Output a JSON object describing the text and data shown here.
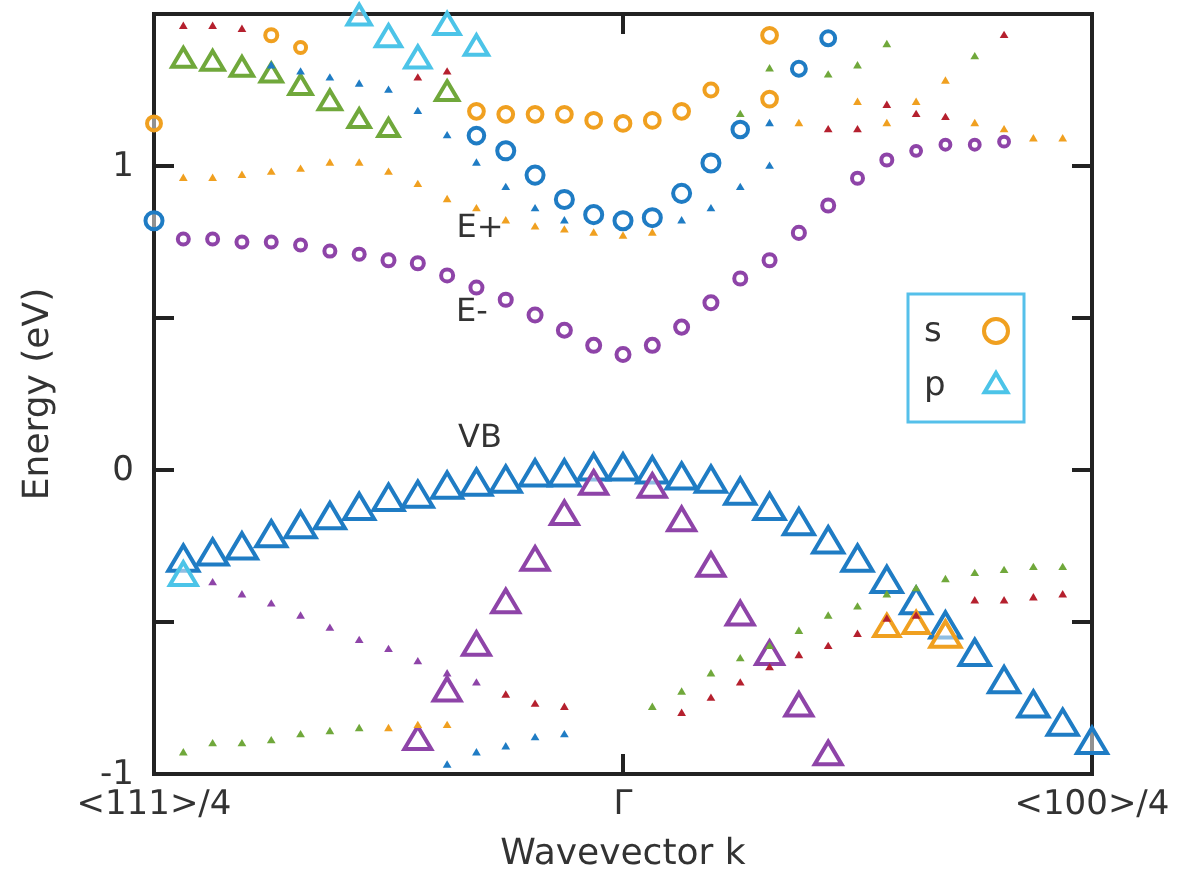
{
  "chart_data": {
    "type": "scatter",
    "xlabel": "Wavevector k",
    "ylabel": "Energy (eV)",
    "ylim": [
      -1,
      1.5
    ],
    "categories": [
      "<111>/4",
      null,
      null,
      null,
      null,
      null,
      null,
      null,
      null,
      null,
      null,
      null,
      null,
      null,
      null,
      null,
      "Γ",
      null,
      null,
      null,
      null,
      null,
      null,
      null,
      null,
      null,
      null,
      null,
      null,
      null,
      null,
      null,
      "<100>/4"
    ],
    "yticks": [
      -1,
      {
        "value": -0.5,
        "label": null
      },
      0,
      {
        "value": 0.5,
        "label": null
      },
      1
    ],
    "legend": "right",
    "annotations": [
      "E+",
      "E-",
      "VB"
    ],
    "series": [
      {
        "type": "bubble",
        "color": "#1f7cc4",
        "marker": "triangle",
        "values": [
          null,
          -0.3,
          -0.28,
          -0.26,
          -0.22,
          -0.19,
          -0.16,
          -0.13,
          -0.1,
          -0.09,
          -0.06,
          -0.05,
          -0.04,
          -0.02,
          -0.02,
          0,
          0,
          -0.01,
          -0.03,
          -0.04,
          -0.08,
          -0.13,
          -0.18,
          -0.24,
          -0.3,
          -0.37,
          -0.44,
          -0.52,
          -0.61,
          -0.7,
          -0.78,
          -0.84,
          -0.9
        ],
        "sizes": [
          null,
          1,
          1,
          1,
          1,
          1,
          1,
          1,
          1,
          1,
          1,
          1,
          1,
          1,
          1,
          1,
          1,
          1,
          1,
          1,
          1,
          1,
          1,
          1,
          1,
          1,
          1,
          1,
          1,
          1,
          1,
          1,
          1
        ]
      },
      {
        "type": "bubble",
        "color": "#8e44a8",
        "marker": "triangle",
        "values": [
          null,
          null,
          null,
          null,
          null,
          null,
          null,
          null,
          null,
          -0.89,
          -0.73,
          -0.58,
          -0.44,
          -0.3,
          -0.15,
          -0.05,
          null,
          -0.06,
          -0.17,
          -0.32,
          -0.48,
          -0.61,
          -0.78,
          -0.94,
          null,
          null,
          null,
          null,
          null,
          null,
          null,
          null,
          null
        ],
        "sizes": [
          null,
          null,
          null,
          null,
          null,
          null,
          null,
          null,
          null,
          0.8,
          0.8,
          0.8,
          0.8,
          0.8,
          0.8,
          0.8,
          null,
          0.8,
          0.8,
          0.8,
          0.8,
          0.8,
          0.8,
          0.8,
          null,
          null,
          null,
          null,
          null,
          null,
          null,
          null,
          null
        ]
      },
      {
        "type": "bubble",
        "color": "#f0a020",
        "marker": "triangle",
        "values": [
          null,
          null,
          null,
          null,
          null,
          null,
          null,
          null,
          null,
          null,
          null,
          null,
          null,
          null,
          null,
          null,
          null,
          null,
          null,
          null,
          null,
          null,
          null,
          null,
          null,
          -0.52,
          -0.51,
          -0.55,
          null,
          null,
          null,
          null,
          null
        ],
        "sizes": [
          null,
          null,
          null,
          null,
          null,
          null,
          null,
          null,
          null,
          null,
          null,
          null,
          null,
          null,
          null,
          null,
          null,
          null,
          null,
          null,
          null,
          null,
          null,
          null,
          null,
          0.7,
          0.7,
          1,
          null,
          null,
          null,
          null,
          null
        ]
      },
      {
        "type": "bubble",
        "color": "#8e44a8",
        "marker": "circle",
        "values": [
          null,
          0.76,
          0.76,
          0.75,
          0.75,
          0.74,
          0.72,
          0.71,
          0.69,
          0.68,
          0.64,
          0.6,
          0.56,
          0.51,
          0.46,
          0.41,
          0.38,
          0.41,
          0.47,
          0.55,
          0.63,
          0.69,
          0.78,
          0.87,
          0.96,
          1.02,
          1.05,
          1.07,
          1.07,
          1.08,
          null,
          null,
          null
        ],
        "sizes": [
          null,
          0.25,
          0.25,
          0.25,
          0.25,
          0.25,
          0.25,
          0.25,
          0.3,
          0.3,
          0.3,
          0.3,
          0.3,
          0.35,
          0.35,
          0.35,
          0.35,
          0.35,
          0.35,
          0.35,
          0.3,
          0.3,
          0.3,
          0.3,
          0.25,
          0.25,
          0.2,
          0.2,
          0.2,
          0.2,
          null,
          null,
          null
        ]
      },
      {
        "type": "bubble",
        "color": "#1f7cc4",
        "marker": "circle",
        "values": [
          0.82,
          null,
          null,
          null,
          null,
          null,
          null,
          null,
          null,
          null,
          null,
          1.1,
          1.05,
          0.97,
          0.89,
          0.84,
          0.82,
          0.83,
          0.91,
          1.01,
          1.12,
          null,
          1.32,
          1.42,
          null,
          null,
          null,
          null,
          null,
          null,
          null,
          null,
          null
        ],
        "sizes": [
          0.6,
          null,
          null,
          null,
          null,
          null,
          null,
          null,
          null,
          null,
          null,
          0.5,
          0.6,
          0.6,
          0.6,
          0.6,
          0.6,
          0.6,
          0.6,
          0.6,
          0.5,
          null,
          0.4,
          0.4,
          null,
          null,
          null,
          null,
          null,
          null,
          null,
          null,
          null
        ]
      },
      {
        "name": "s",
        "type": "bubble",
        "color": "#f0a020",
        "marker": "circle",
        "values": [
          1.14,
          null,
          null,
          null,
          1.43,
          1.39,
          null,
          null,
          null,
          null,
          null,
          1.18,
          1.17,
          1.17,
          1.17,
          1.15,
          1.14,
          1.15,
          1.18,
          1.25,
          null,
          1.22,
          null,
          null,
          null,
          null,
          null,
          null,
          null,
          null,
          null,
          null,
          null
        ],
        "sizes": [
          0.4,
          null,
          null,
          null,
          0.3,
          0.25,
          null,
          null,
          null,
          null,
          null,
          0.45,
          0.45,
          0.45,
          0.45,
          0.45,
          0.45,
          0.45,
          0.45,
          0.35,
          null,
          0.45,
          null,
          null,
          null,
          null,
          null,
          null,
          null,
          null,
          null,
          null,
          null
        ]
      },
      {
        "type": "bubble",
        "color": "#f0a020",
        "marker": "circle",
        "values": [
          null,
          null,
          null,
          null,
          null,
          null,
          null,
          null,
          null,
          null,
          null,
          null,
          null,
          null,
          null,
          null,
          null,
          null,
          null,
          null,
          null,
          1.43,
          null,
          null,
          null,
          null,
          null,
          null,
          null,
          null,
          null,
          null,
          null
        ],
        "sizes": [
          null,
          null,
          null,
          null,
          null,
          null,
          null,
          null,
          null,
          null,
          null,
          null,
          null,
          null,
          null,
          null,
          null,
          null,
          null,
          null,
          null,
          0.45,
          null,
          null,
          null,
          null,
          null,
          null,
          null,
          null,
          null,
          null,
          null
        ]
      },
      {
        "name": "p",
        "type": "bubble",
        "color": "#4cc4e8",
        "marker": "triangle",
        "values": [
          null,
          -0.35,
          null,
          null,
          null,
          null,
          null,
          1.49,
          1.42,
          1.35,
          1.46,
          1.39,
          null,
          null,
          null,
          null,
          null,
          null,
          null,
          null,
          null,
          null,
          null,
          null,
          null,
          null,
          null,
          null,
          null,
          null,
          null,
          null,
          null
        ],
        "sizes": [
          null,
          0.8,
          null,
          null,
          null,
          null,
          null,
          0.6,
          0.7,
          0.7,
          0.7,
          0.6,
          null,
          null,
          null,
          null,
          null,
          null,
          null,
          null,
          null,
          null,
          null,
          null,
          null,
          null,
          null,
          null,
          null,
          null,
          null,
          null,
          null
        ]
      },
      {
        "type": "bubble",
        "color": "#70a83b",
        "marker": "triangle",
        "values": [
          null,
          1.35,
          1.34,
          1.32,
          1.3,
          1.26,
          1.21,
          1.15,
          1.12,
          null,
          1.24,
          null,
          null,
          null,
          null,
          null,
          null,
          null,
          null,
          null,
          null,
          null,
          null,
          null,
          null,
          null,
          null,
          null,
          null,
          null,
          null,
          null,
          null
        ],
        "sizes": [
          null,
          0.55,
          0.55,
          0.55,
          0.5,
          0.55,
          0.55,
          0.5,
          0.45,
          null,
          0.55,
          null,
          null,
          null,
          null,
          null,
          null,
          null,
          null,
          null,
          null,
          null,
          null,
          null,
          null,
          null,
          null,
          null,
          null,
          null,
          null,
          null,
          null
        ]
      },
      {
        "color": "#f0a020",
        "marker": "triangle",
        "values": [
          null,
          0.96,
          0.96,
          0.97,
          0.98,
          0.99,
          1.01,
          1.01,
          0.98,
          0.94,
          0.89,
          0.86,
          0.82,
          0.8,
          0.79,
          0.78,
          0.77,
          0.78,
          null,
          null,
          null,
          null,
          1.14,
          null,
          1.21,
          1.14,
          1.21,
          1.28,
          1.14,
          1.12,
          1.09,
          1.09,
          null
        ]
      },
      {
        "color": "#f0a020",
        "marker": "triangle",
        "values": [
          null,
          null,
          null,
          null,
          null,
          null,
          null,
          null,
          -0.85,
          -0.84,
          -0.84,
          null,
          null,
          null,
          null,
          null,
          null,
          null,
          null,
          null,
          null,
          null,
          null,
          null,
          null,
          null,
          null,
          null,
          null,
          null,
          null,
          null,
          null
        ]
      },
      {
        "color": "#70a83b",
        "marker": "triangle",
        "values": [
          null,
          null,
          null,
          null,
          null,
          null,
          null,
          null,
          null,
          null,
          null,
          null,
          null,
          null,
          null,
          null,
          null,
          null,
          null,
          null,
          1.17,
          1.32,
          null,
          1.3,
          1.33,
          1.4,
          null,
          null,
          1.36,
          null,
          null,
          null,
          null
        ]
      },
      {
        "color": "#70a83b",
        "marker": "triangle",
        "values": [
          null,
          -0.93,
          -0.9,
          -0.9,
          -0.89,
          -0.87,
          -0.86,
          -0.85,
          null,
          null,
          null,
          null,
          null,
          null,
          null,
          null,
          null,
          -0.78,
          -0.73,
          -0.67,
          -0.62,
          -0.58,
          -0.53,
          -0.48,
          -0.45,
          -0.41,
          -0.39,
          -0.36,
          -0.34,
          -0.33,
          -0.32,
          -0.32,
          null
        ]
      },
      {
        "color": "#8e44a8",
        "marker": "triangle",
        "values": [
          null,
          null,
          -0.37,
          -0.41,
          -0.44,
          -0.48,
          -0.52,
          -0.56,
          -0.59,
          -0.63,
          -0.67,
          -0.7,
          null,
          null,
          null,
          null,
          null,
          null,
          null,
          null,
          null,
          null,
          null,
          null,
          null,
          null,
          null,
          null,
          null,
          null,
          null,
          null,
          null
        ]
      },
      {
        "color": "#b5202e",
        "marker": "triangle",
        "values": [
          null,
          1.46,
          1.46,
          1.45,
          null,
          null,
          null,
          null,
          null,
          1.29,
          1.31,
          null,
          null,
          null,
          null,
          null,
          null,
          null,
          null,
          null,
          null,
          null,
          null,
          1.12,
          1.12,
          1.2,
          1.17,
          1.16,
          null,
          1.43,
          null,
          null,
          null
        ]
      },
      {
        "color": "#b5202e",
        "marker": "triangle",
        "values": [
          null,
          null,
          null,
          null,
          null,
          null,
          null,
          null,
          null,
          null,
          null,
          null,
          -0.74,
          -0.77,
          -0.78,
          null,
          null,
          null,
          -0.8,
          -0.75,
          -0.7,
          -0.65,
          -0.61,
          -0.58,
          -0.54,
          -0.49,
          -0.48,
          null,
          -0.43,
          -0.43,
          -0.42,
          -0.41,
          null
        ]
      },
      {
        "color": "#1f7cc4",
        "marker": "triangle",
        "values": [
          null,
          null,
          null,
          null,
          null,
          null,
          null,
          null,
          null,
          null,
          -0.97,
          -0.93,
          -0.91,
          -0.88,
          -0.87,
          null,
          null,
          null,
          null,
          null,
          null,
          null,
          null,
          null,
          null,
          null,
          null,
          null,
          null,
          null,
          null,
          null,
          null
        ]
      },
      {
        "color": "#1f7cc4",
        "marker": "triangle",
        "values": [
          null,
          null,
          null,
          null,
          null,
          null,
          null,
          null,
          null,
          1.18,
          1.1,
          1.01,
          0.93,
          0.86,
          0.82,
          null,
          null,
          null,
          0.82,
          0.86,
          0.93,
          1,
          null,
          null,
          null,
          null,
          null,
          null,
          null,
          null,
          null,
          null,
          null
        ]
      },
      {
        "color": "#1f7cc4",
        "marker": "triangle",
        "values": [
          null,
          null,
          null,
          null,
          1.33,
          1.31,
          1.29,
          1.27,
          1.25,
          null,
          null,
          null,
          null,
          null,
          null,
          null,
          null,
          null,
          null,
          null,
          null,
          1.14,
          null,
          null,
          null,
          null,
          null,
          null,
          null,
          null,
          null,
          null,
          null
        ]
      }
    ]
  }
}
